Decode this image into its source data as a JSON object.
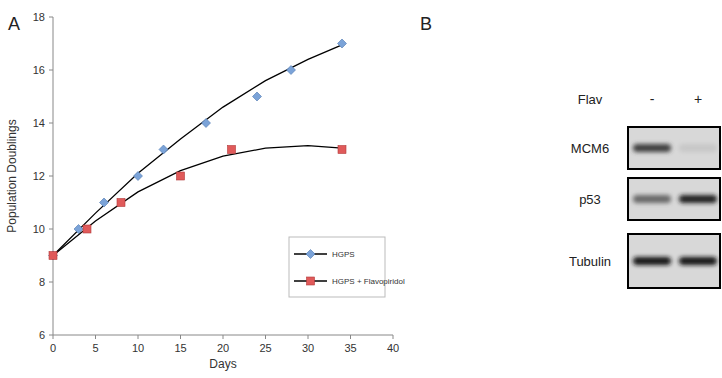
{
  "chart_data": {
    "type": "line",
    "title": "A",
    "x_label": "Days",
    "y_label": "Population Doublings",
    "xlim": [
      0,
      40
    ],
    "xticks": [
      0,
      5,
      10,
      15,
      20,
      25,
      30,
      35,
      40
    ],
    "ylim": [
      6,
      18
    ],
    "yticks": [
      6,
      8,
      10,
      12,
      14,
      16,
      18
    ],
    "grid": false,
    "legend": "lower right",
    "series": [
      {
        "name": "HGPS",
        "color": "#7ba3d8",
        "marker": "diamond",
        "x": [
          0,
          3,
          6,
          10,
          13,
          18,
          24,
          28,
          34
        ],
        "values": [
          9,
          10,
          11,
          12,
          13,
          14,
          15,
          16,
          17
        ],
        "trend": {
          "x": [
            0,
            5,
            10,
            15,
            20,
            25,
            30,
            34
          ],
          "values": [
            9,
            10.6,
            12.1,
            13.4,
            14.6,
            15.6,
            16.4,
            16.95
          ]
        }
      },
      {
        "name": "HGPS + Flavopiridol",
        "color": "#e05a5a",
        "marker": "square",
        "x": [
          0,
          4,
          8,
          15,
          21,
          34
        ],
        "values": [
          9,
          10,
          11,
          12,
          13,
          13
        ],
        "trend": {
          "x": [
            0,
            5,
            10,
            15,
            20,
            25,
            30,
            34
          ],
          "values": [
            9,
            10.3,
            11.4,
            12.2,
            12.75,
            13.05,
            13.15,
            13.05
          ]
        }
      }
    ]
  },
  "blot": {
    "label": "B",
    "treatment": "Flav",
    "lanes": [
      "-",
      "+"
    ],
    "rows": [
      {
        "label": "MCM6",
        "intensity": [
          0.75,
          0.08
        ]
      },
      {
        "label": "p53",
        "intensity": [
          0.55,
          0.9
        ]
      },
      {
        "label": "Tubulin",
        "intensity": [
          0.95,
          0.95
        ]
      }
    ]
  }
}
